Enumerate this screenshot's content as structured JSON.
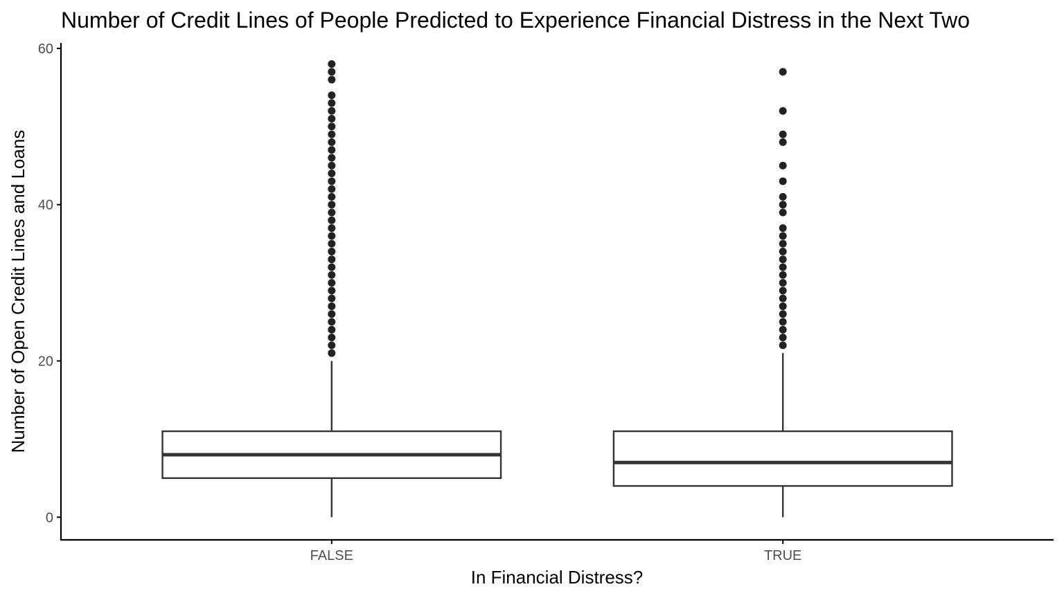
{
  "chart_data": {
    "type": "boxplot",
    "title": "Number of Credit Lines of People Predicted to Experience Financial Distress in the Next Two",
    "xlabel": "In Financial Distress?",
    "ylabel": "Number of Open Credit Lines and Loans",
    "categories": [
      "FALSE",
      "TRUE"
    ],
    "ylim": [
      -2.9,
      60.7
    ],
    "yticks": [
      0,
      20,
      40,
      60
    ],
    "grid": false,
    "colors": {
      "box_stroke": "#333333",
      "box_fill": "#ffffff",
      "outlier": "#222222",
      "axis": "#000000",
      "tick_label": "#4d4d4d"
    },
    "boxes": [
      {
        "category": "FALSE",
        "min": 0,
        "q1": 5,
        "median": 8,
        "q3": 11,
        "max": 20,
        "outliers": [
          21,
          22,
          23,
          24,
          25,
          26,
          27,
          28,
          29,
          30,
          31,
          32,
          33,
          34,
          35,
          36,
          37,
          38,
          39,
          40,
          41,
          42,
          43,
          44,
          45,
          46,
          47,
          48,
          49,
          50,
          51,
          52,
          53,
          54,
          56,
          57,
          58
        ]
      },
      {
        "category": "TRUE",
        "min": 0,
        "q1": 4,
        "median": 7,
        "q3": 11,
        "max": 21,
        "outliers": [
          22,
          23,
          24,
          25,
          26,
          27,
          28,
          29,
          30,
          31,
          32,
          33,
          34,
          35,
          36,
          37,
          39,
          40,
          41,
          43,
          45,
          48,
          49,
          52,
          57
        ]
      }
    ]
  }
}
